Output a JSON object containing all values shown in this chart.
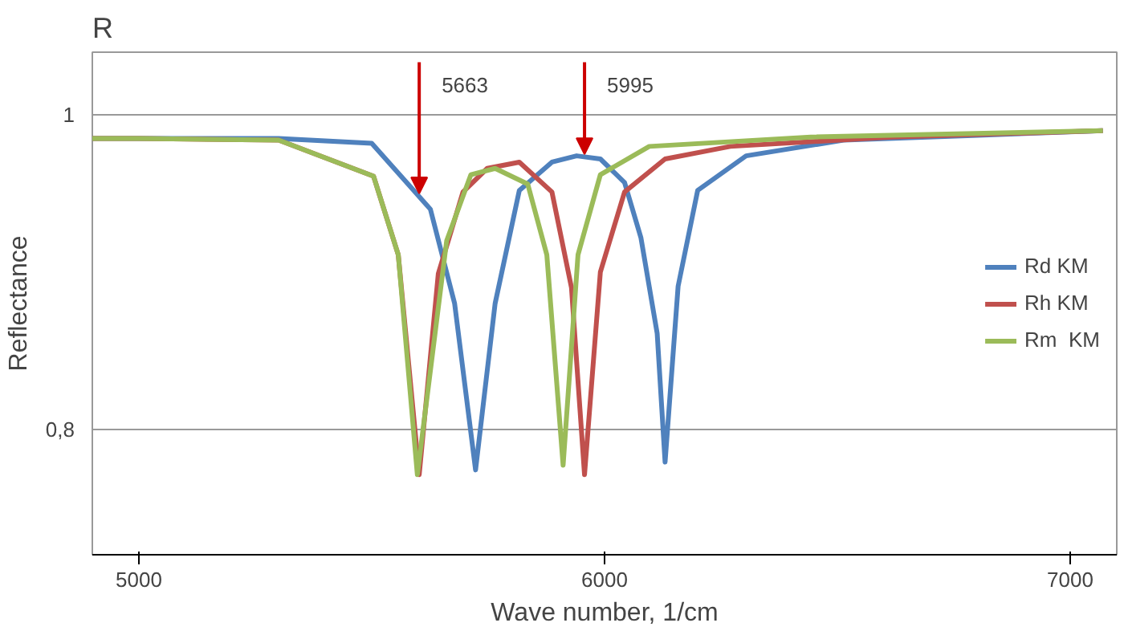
{
  "chart_data": {
    "type": "line",
    "title": "R",
    "xlabel": "Wave number, 1/cm",
    "ylabel": "Reflectance",
    "xlim": [
      4900,
      7100
    ],
    "ylim": [
      0.72,
      1.04
    ],
    "xticks": [
      5000,
      6000,
      7000
    ],
    "yticks": [
      {
        "value": 0.8,
        "label": "0,8"
      },
      1
    ],
    "grid": "y",
    "legend": "right",
    "marker": "none",
    "line_style": "solid",
    "annotations": [
      {
        "text": "5663",
        "x": 5602,
        "y": 0.95
      },
      {
        "text": "5995",
        "x": 5957,
        "y": 0.975
      }
    ],
    "series": [
      {
        "name": "Rd KM",
        "color": "#4f81bd",
        "x": [
          4900,
          5000,
          5300,
          5500,
          5626,
          5678,
          5723,
          5765,
          5817,
          5887,
          5940,
          5991,
          6043,
          6078,
          6113,
          6130,
          6158,
          6200,
          6304,
          6513,
          6791,
          7070
        ],
        "values": [
          0.985,
          0.985,
          0.985,
          0.982,
          0.94,
          0.88,
          0.774,
          0.88,
          0.952,
          0.97,
          0.974,
          0.972,
          0.957,
          0.922,
          0.861,
          0.779,
          0.891,
          0.952,
          0.974,
          0.984,
          0.987,
          0.99
        ]
      },
      {
        "name": "Rh KM",
        "color": "#c0504d",
        "x": [
          4900,
          5000,
          5300,
          5504,
          5557,
          5602,
          5643,
          5696,
          5748,
          5817,
          5887,
          5929,
          5957,
          5991,
          6043,
          6130,
          6270,
          6617,
          7070
        ],
        "values": [
          0.985,
          0.985,
          0.984,
          0.961,
          0.911,
          0.771,
          0.899,
          0.951,
          0.966,
          0.97,
          0.951,
          0.89,
          0.771,
          0.9,
          0.951,
          0.972,
          0.98,
          0.986,
          0.99
        ]
      },
      {
        "name": "Rm  KM",
        "color": "#9bbb59",
        "x": [
          4900,
          5000,
          5300,
          5504,
          5557,
          5598,
          5661,
          5713,
          5765,
          5835,
          5876,
          5911,
          5943,
          5991,
          6096,
          6443,
          7070
        ],
        "values": [
          0.985,
          0.985,
          0.984,
          0.961,
          0.911,
          0.771,
          0.92,
          0.962,
          0.966,
          0.956,
          0.911,
          0.777,
          0.911,
          0.962,
          0.98,
          0.986,
          0.99
        ]
      }
    ]
  }
}
